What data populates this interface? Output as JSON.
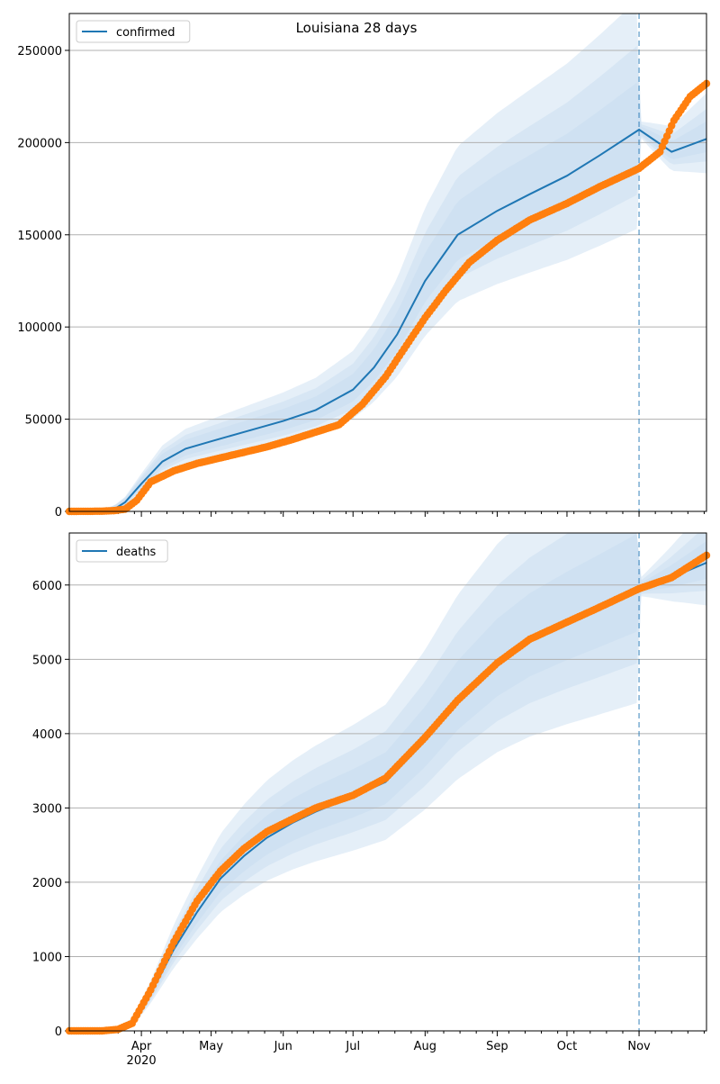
{
  "chart_data": [
    {
      "type": "line",
      "title": "Louisiana 28 days",
      "legend": {
        "label": "confirmed",
        "placement": "top-left"
      },
      "grid": "y",
      "ylim": [
        0,
        270000
      ],
      "yticks": [
        0,
        50000,
        100000,
        150000,
        200000,
        250000
      ],
      "x_range": [
        "2020-03-01",
        "2020-11-30"
      ],
      "forecast_start": "2020-11-01",
      "x_tick_labels": [
        "Apr",
        "May",
        "Jun",
        "Jul",
        "Aug",
        "Sep",
        "Oct",
        "Nov"
      ],
      "x_tick_dates": [
        "2020-04-01",
        "2020-05-01",
        "2020-06-01",
        "2020-07-01",
        "2020-08-01",
        "2020-09-01",
        "2020-10-01",
        "2020-11-01"
      ],
      "year_label": "2020",
      "colors": {
        "model": "#1f77b4",
        "observed": "#ff7f0e",
        "band": "#c6dbef",
        "grid": "#b0b0b0"
      },
      "series": [
        {
          "name": "confirmed",
          "role": "model",
          "x": [
            "2020-03-01",
            "2020-03-15",
            "2020-03-20",
            "2020-03-25",
            "2020-04-01",
            "2020-04-10",
            "2020-04-20",
            "2020-05-01",
            "2020-05-15",
            "2020-06-01",
            "2020-06-15",
            "2020-07-01",
            "2020-07-10",
            "2020-07-20",
            "2020-08-01",
            "2020-08-15",
            "2020-09-01",
            "2020-09-15",
            "2020-10-01",
            "2020-10-15",
            "2020-11-01",
            "2020-11-15",
            "2020-11-30"
          ],
          "y": [
            0,
            100,
            1000,
            5000,
            15000,
            27000,
            34000,
            38000,
            43000,
            49000,
            55000,
            66000,
            78000,
            96000,
            125000,
            150000,
            163000,
            172000,
            182000,
            193000,
            207000,
            195000,
            202000
          ]
        },
        {
          "name": "observed",
          "role": "observed",
          "x": [
            "2020-03-01",
            "2020-03-15",
            "2020-03-20",
            "2020-03-25",
            "2020-03-30",
            "2020-04-05",
            "2020-04-15",
            "2020-04-25",
            "2020-05-05",
            "2020-05-15",
            "2020-05-25",
            "2020-06-05",
            "2020-06-15",
            "2020-06-25",
            "2020-07-05",
            "2020-07-15",
            "2020-07-25",
            "2020-08-01",
            "2020-08-10",
            "2020-08-20",
            "2020-09-01",
            "2020-09-15",
            "2020-10-01",
            "2020-10-15",
            "2020-11-01",
            "2020-11-10",
            "2020-11-16",
            "2020-11-23",
            "2020-11-30"
          ],
          "y": [
            0,
            100,
            400,
            1200,
            6000,
            16000,
            22000,
            26000,
            29000,
            32000,
            35000,
            39000,
            43000,
            47000,
            58000,
            73000,
            92000,
            105000,
            120000,
            135000,
            147000,
            158000,
            167000,
            176000,
            186000,
            195000,
            212000,
            225000,
            232000
          ]
        }
      ]
    },
    {
      "type": "line",
      "title": "",
      "legend": {
        "label": "deaths",
        "placement": "top-left"
      },
      "grid": "y",
      "ylim": [
        0,
        6700
      ],
      "yticks": [
        0,
        1000,
        2000,
        3000,
        4000,
        5000,
        6000
      ],
      "x_range": [
        "2020-03-01",
        "2020-11-30"
      ],
      "forecast_start": "2020-11-01",
      "x_tick_labels": [
        "Apr",
        "May",
        "Jun",
        "Jul",
        "Aug",
        "Sep",
        "Oct",
        "Nov"
      ],
      "x_tick_dates": [
        "2020-04-01",
        "2020-05-01",
        "2020-06-01",
        "2020-07-01",
        "2020-08-01",
        "2020-09-01",
        "2020-10-01",
        "2020-11-01"
      ],
      "year_label": "2020",
      "colors": {
        "model": "#1f77b4",
        "observed": "#ff7f0e",
        "band": "#c6dbef",
        "grid": "#b0b0b0"
      },
      "series": [
        {
          "name": "deaths",
          "role": "model",
          "x": [
            "2020-03-01",
            "2020-03-15",
            "2020-03-22",
            "2020-03-28",
            "2020-04-05",
            "2020-04-15",
            "2020-04-25",
            "2020-05-05",
            "2020-05-15",
            "2020-05-25",
            "2020-06-05",
            "2020-06-15",
            "2020-07-01",
            "2020-07-15",
            "2020-08-01",
            "2020-08-15",
            "2020-09-01",
            "2020-09-15",
            "2020-10-01",
            "2020-10-15",
            "2020-11-01",
            "2020-11-15",
            "2020-11-30"
          ],
          "y": [
            0,
            0,
            20,
            100,
            500,
            1100,
            1600,
            2050,
            2350,
            2600,
            2800,
            2950,
            3150,
            3350,
            3900,
            4450,
            4950,
            5250,
            5500,
            5700,
            5950,
            6100,
            6300
          ]
        },
        {
          "name": "observed",
          "role": "observed",
          "x": [
            "2020-03-01",
            "2020-03-15",
            "2020-03-22",
            "2020-03-28",
            "2020-04-05",
            "2020-04-15",
            "2020-04-25",
            "2020-05-05",
            "2020-05-15",
            "2020-05-25",
            "2020-06-05",
            "2020-06-15",
            "2020-07-01",
            "2020-07-15",
            "2020-08-01",
            "2020-08-15",
            "2020-09-01",
            "2020-09-15",
            "2020-10-01",
            "2020-10-15",
            "2020-11-01",
            "2020-11-15",
            "2020-11-30"
          ],
          "y": [
            0,
            0,
            20,
            100,
            550,
            1200,
            1750,
            2150,
            2450,
            2680,
            2850,
            3000,
            3170,
            3400,
            3950,
            4450,
            4950,
            5270,
            5500,
            5700,
            5950,
            6100,
            6400
          ]
        }
      ]
    }
  ]
}
